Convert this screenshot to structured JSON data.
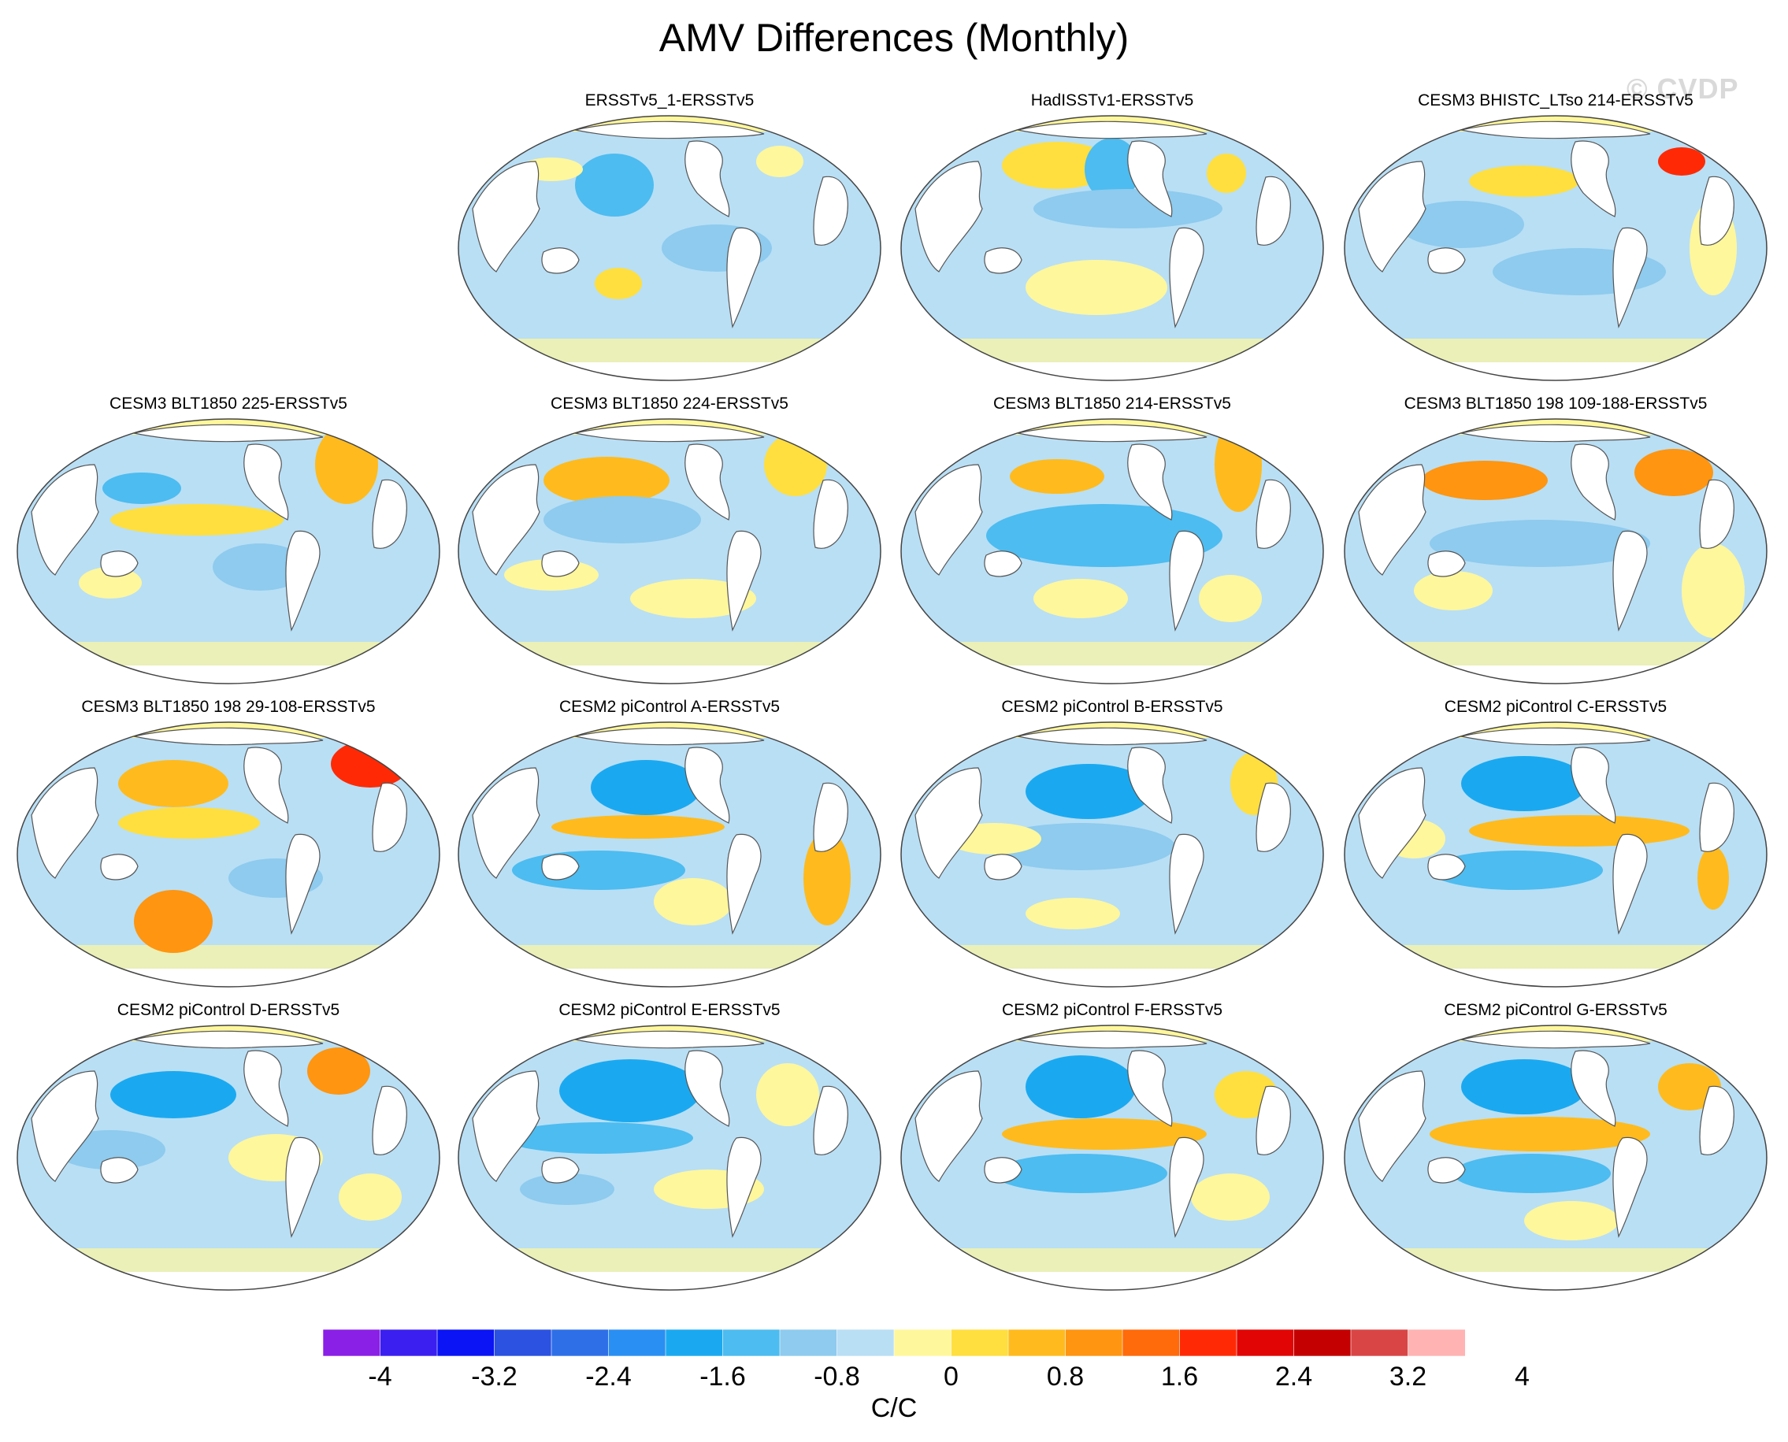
{
  "title": "AMV Differences (Monthly)",
  "watermark": "© CVDP",
  "units": "C/C",
  "colors": {
    "ocean_default": "#b9dff5",
    "coast": "#555555",
    "land": "#ffffff",
    "contour_fill": [
      "#8a1fe6",
      "#3b1ff0",
      "#0a14f5",
      "#2b52e0",
      "#2e6fe8",
      "#2a8ff2",
      "#1aa9f0",
      "#4dbcf0",
      "#8ecbee",
      "#b9dff5",
      "#fff79c",
      "#ffdf3f",
      "#ffbb1e",
      "#ff9510",
      "#ff6a0a",
      "#ff2a05",
      "#e20505",
      "#c40000",
      "#d94545",
      "#ffb3b3"
    ]
  },
  "colorbar": {
    "levels": [
      -4,
      -3.6,
      -3.2,
      -2.8,
      -2.4,
      -2.0,
      -1.6,
      -1.2,
      -0.8,
      -0.4,
      0,
      0.4,
      0.8,
      1.2,
      1.6,
      2.0,
      2.4,
      2.8,
      3.2,
      3.6,
      4
    ],
    "labels": [
      "-4",
      "-3.2",
      "-2.4",
      "-1.6",
      "-0.8",
      "0",
      "0.8",
      "1.6",
      "2.4",
      "3.2",
      "4"
    ]
  },
  "panels": [
    {
      "title": "ERSSTv5_1-ERSSTv5"
    },
    {
      "title": "HadISSTv1-ERSSTv5"
    },
    {
      "title": "CESM3 BHISTC_LTso 214-ERSSTv5"
    },
    {
      "title": "CESM3 BLT1850 225-ERSSTv5"
    },
    {
      "title": "CESM3 BLT1850 224-ERSSTv5"
    },
    {
      "title": "CESM3 BLT1850 214-ERSSTv5"
    },
    {
      "title": "CESM3 BLT1850 198 109-188-ERSSTv5"
    },
    {
      "title": "CESM3 BLT1850 198 29-108-ERSSTv5"
    },
    {
      "title": "CESM2 piControl A-ERSSTv5"
    },
    {
      "title": "CESM2 piControl B-ERSSTv5"
    },
    {
      "title": "CESM2 piControl C-ERSSTv5"
    },
    {
      "title": "CESM2 piControl D-ERSSTv5"
    },
    {
      "title": "CESM2 piControl E-ERSSTv5"
    },
    {
      "title": "CESM2 piControl F-ERSSTv5"
    },
    {
      "title": "CESM2 piControl G-ERSSTv5"
    }
  ]
}
